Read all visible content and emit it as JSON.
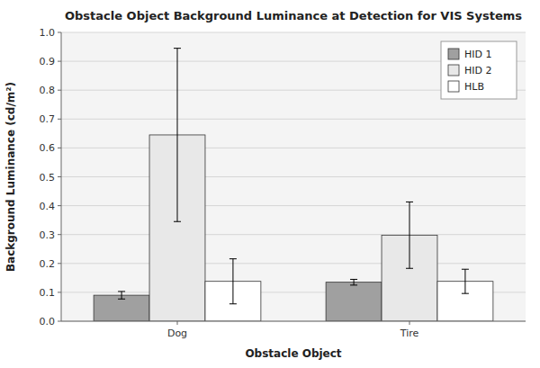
{
  "chart_data": {
    "type": "bar",
    "title": "Obstacle Object Background Luminance at Detection for VIS Systems",
    "xlabel": "Obstacle Object",
    "ylabel": "Background Luminance (cd/m²)",
    "categories": [
      "Dog",
      "Tire"
    ],
    "series": [
      {
        "name": "HID 1",
        "color": "#a0a0a0",
        "values": [
          0.09,
          0.135
        ],
        "errors": [
          0.013,
          0.01
        ]
      },
      {
        "name": "HID 2",
        "color": "#e8e8e8",
        "values": [
          0.645,
          0.298
        ],
        "errors": [
          0.3,
          0.115
        ]
      },
      {
        "name": "HLB",
        "color": "#ffffff",
        "values": [
          0.138,
          0.138
        ],
        "errors": [
          0.078,
          0.042
        ]
      }
    ],
    "ylim": [
      0,
      1.0
    ],
    "yticks": [
      {
        "value": 0,
        "label": "0.0"
      },
      0.1,
      0.2,
      0.3,
      0.4,
      0.5,
      0.6,
      0.7,
      0.8,
      0.9,
      {
        "value": 1.0,
        "label": "1.0"
      }
    ],
    "grid": true,
    "legend": "upper right"
  }
}
